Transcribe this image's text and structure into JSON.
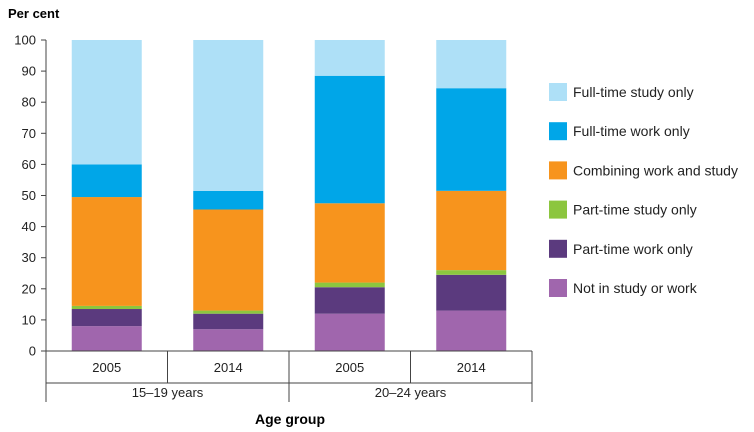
{
  "chart_data": {
    "type": "bar",
    "stacked": true,
    "ylabel": "Per cent",
    "xlabel": "Age group",
    "ylim": [
      0,
      100
    ],
    "yticks": [
      0,
      10,
      20,
      30,
      40,
      50,
      60,
      70,
      80,
      90,
      100
    ],
    "categories": [
      "2005",
      "2014",
      "2005",
      "2014"
    ],
    "groups": [
      {
        "label": "15–19 years",
        "categories": [
          0,
          1
        ]
      },
      {
        "label": "20–24 years",
        "categories": [
          2,
          3
        ]
      }
    ],
    "series": [
      {
        "name": "Not in study or work",
        "color": "#a066ad",
        "values": [
          8,
          7,
          12,
          13
        ]
      },
      {
        "name": "Part-time work only",
        "color": "#5b3a7e",
        "values": [
          5.5,
          5,
          8.5,
          11.5
        ]
      },
      {
        "name": "Part-time study only",
        "color": "#8cc63f",
        "values": [
          1,
          1,
          1.5,
          1.5
        ]
      },
      {
        "name": "Combining work and study",
        "color": "#f7941d",
        "values": [
          35,
          32.5,
          25.5,
          25.5
        ]
      },
      {
        "name": "Full-time work only",
        "color": "#00a6e8",
        "values": [
          10.5,
          6,
          41,
          33
        ]
      },
      {
        "name": "Full-time study only",
        "color": "#aee0f7",
        "values": [
          40,
          48.5,
          11.5,
          15.5
        ]
      }
    ],
    "legend_order": [
      "Full-time study only",
      "Full-time work only",
      "Combining work and study",
      "Part-time study only",
      "Part-time work only",
      "Not in study or work"
    ],
    "grid": false,
    "legend_position": "right"
  }
}
